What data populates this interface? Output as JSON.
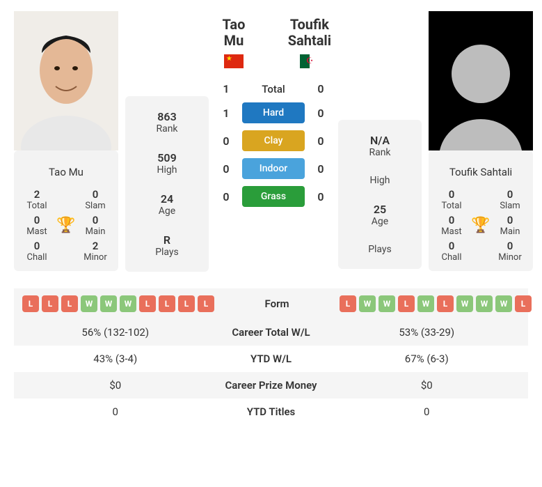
{
  "player1": {
    "name": "Tao Mu",
    "flag": "cn",
    "titles": {
      "total": 2,
      "slam": 0,
      "mast": 0,
      "main": 0,
      "chall": 0,
      "minor": 2
    },
    "info": {
      "rank": "863",
      "high": "509",
      "age": "24",
      "plays": "R"
    }
  },
  "player2": {
    "name": "Toufik Sahtali",
    "flag": "dz",
    "titles": {
      "total": 0,
      "slam": 0,
      "mast": 0,
      "main": 0,
      "chall": 0,
      "minor": 0
    },
    "info": {
      "rank": "N/A",
      "high": "",
      "age": "25",
      "plays": ""
    }
  },
  "h2h": {
    "total": {
      "p1": 1,
      "p2": 0,
      "label": "Total"
    },
    "hard": {
      "p1": 1,
      "p2": 0,
      "label": "Hard"
    },
    "clay": {
      "p1": 0,
      "p2": 0,
      "label": "Clay"
    },
    "indoor": {
      "p1": 0,
      "p2": 0,
      "label": "Indoor"
    },
    "grass": {
      "p1": 0,
      "p2": 0,
      "label": "Grass"
    }
  },
  "labels": {
    "total": "Total",
    "slam": "Slam",
    "mast": "Mast",
    "main": "Main",
    "chall": "Chall",
    "minor": "Minor",
    "rank": "Rank",
    "high": "High",
    "age": "Age",
    "plays": "Plays"
  },
  "form": {
    "label": "Form",
    "p1": [
      "L",
      "L",
      "L",
      "W",
      "W",
      "W",
      "L",
      "L",
      "L",
      "L"
    ],
    "p2": [
      "L",
      "W",
      "W",
      "L",
      "W",
      "L",
      "W",
      "W",
      "W",
      "L"
    ]
  },
  "rows": [
    {
      "label": "Career Total W/L",
      "p1": "56% (132-102)",
      "p2": "53% (33-29)"
    },
    {
      "label": "YTD W/L",
      "p1": "43% (3-4)",
      "p2": "67% (6-3)"
    },
    {
      "label": "Career Prize Money",
      "p1": "$0",
      "p2": "$0"
    },
    {
      "label": "YTD Titles",
      "p1": "0",
      "p2": "0"
    }
  ],
  "colors": {
    "hard": "#1f78c1",
    "clay": "#d9a520",
    "indoor": "#4aa3dc",
    "grass": "#2a9d3a",
    "win": "#8bc77a",
    "loss": "#e96f5b",
    "card_bg": "#f3f3f3",
    "trophy": "#3b8ad9"
  }
}
